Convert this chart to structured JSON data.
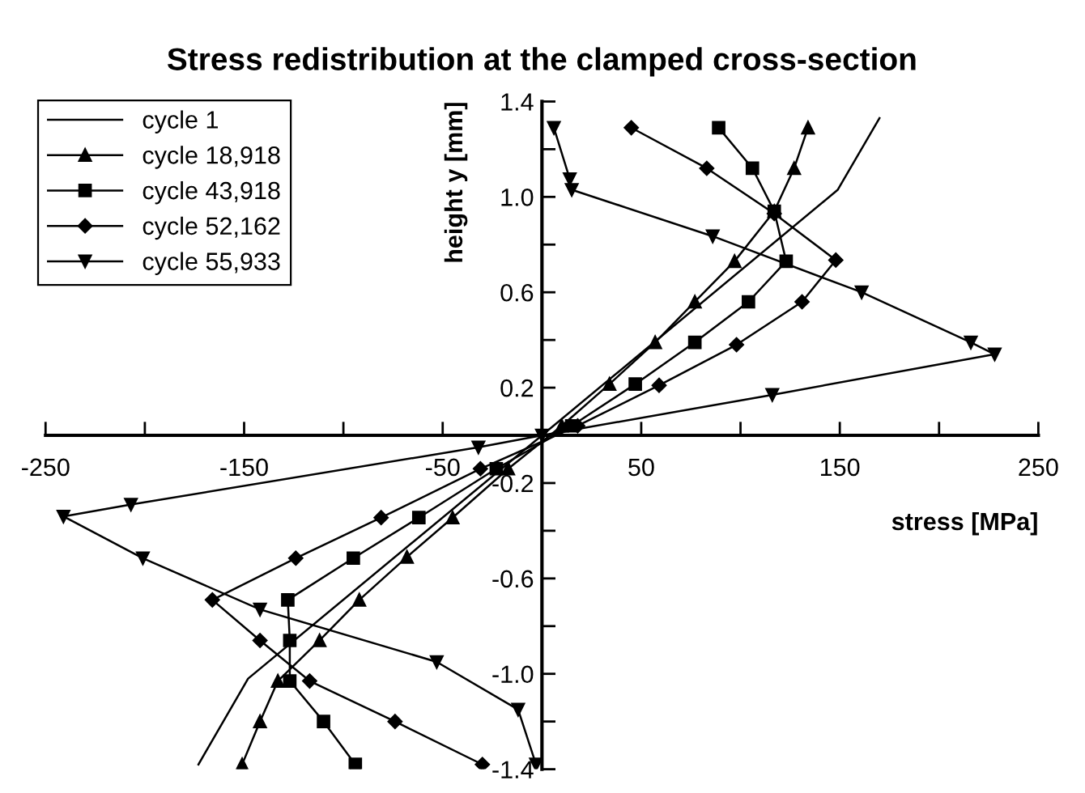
{
  "chart_data": {
    "type": "line",
    "title": "Stress redistribution at the clamped cross-section",
    "xlabel": "stress [MPa]",
    "ylabel": "height y [mm]",
    "xlim": [
      -250,
      250
    ],
    "ylim": [
      -1.4,
      1.4
    ],
    "xticks": [
      -250,
      {
        "value": -200,
        "label": null
      },
      -150,
      {
        "value": -100,
        "label": null
      },
      -50,
      {
        "value": 0,
        "label": null
      },
      50,
      {
        "value": 100,
        "label": null
      },
      150,
      {
        "value": 200,
        "label": null
      },
      250
    ],
    "yticks": [
      -1.4,
      {
        "value": -1.2,
        "label": null
      },
      {
        "value": -1.0,
        "label": "-1.0"
      },
      {
        "value": -0.8,
        "label": null
      },
      -0.6,
      {
        "value": -0.4,
        "label": null
      },
      -0.2,
      {
        "value": 0,
        "label": null
      },
      0.2,
      {
        "value": 0.4,
        "label": null
      },
      0.6,
      {
        "value": 0.8,
        "label": null
      },
      {
        "value": 1.0,
        "label": "1.0"
      },
      {
        "value": 1.2,
        "label": null
      },
      1.4
    ],
    "legend": "top left",
    "grid": false,
    "series": [
      {
        "name": "cycle 1",
        "color": "#000000",
        "marker": "none",
        "x": [
          -173,
          -148,
          0,
          149,
          170
        ],
        "values": [
          -1.38,
          -1.02,
          0,
          1.03,
          1.33
        ]
      },
      {
        "name": "cycle 18,918",
        "color": "#000000",
        "marker": "triangle",
        "x": [
          -151,
          -142,
          -133,
          -112,
          -92,
          -68,
          -45,
          -17,
          10,
          34,
          57,
          77,
          97,
          117,
          127,
          134
        ],
        "values": [
          -1.38,
          -1.2,
          -1.03,
          -0.86,
          -0.69,
          -0.51,
          -0.345,
          -0.14,
          0.04,
          0.215,
          0.39,
          0.56,
          0.73,
          0.94,
          1.12,
          1.29
        ]
      },
      {
        "name": "cycle 43,918",
        "color": "#000000",
        "marker": "square",
        "x": [
          -94,
          -110,
          -127,
          -127,
          -128,
          -95,
          -62,
          -23,
          15,
          47,
          77,
          104,
          123,
          117,
          106,
          89
        ],
        "values": [
          -1.38,
          -1.2,
          -1.03,
          -0.86,
          -0.69,
          -0.515,
          -0.345,
          -0.14,
          0.04,
          0.215,
          0.39,
          0.56,
          0.73,
          0.94,
          1.12,
          1.29
        ]
      },
      {
        "name": "cycle 52,162",
        "color": "#000000",
        "marker": "diamond",
        "x": [
          -30,
          -74,
          -117,
          -142,
          -166,
          -124,
          -81,
          -31,
          18,
          59,
          98,
          131,
          148,
          117,
          83,
          45
        ],
        "values": [
          -1.38,
          -1.2,
          -1.03,
          -0.86,
          -0.69,
          -0.515,
          -0.345,
          -0.14,
          0.04,
          0.21,
          0.38,
          0.56,
          0.735,
          0.93,
          1.12,
          1.29
        ]
      },
      {
        "name": "cycle 55,933",
        "color": "#000000",
        "marker": "triangle_down",
        "x": [
          -3,
          -12,
          -53,
          -142,
          -201,
          -241,
          -207,
          -32,
          0,
          116,
          228,
          216,
          161,
          86,
          15,
          14,
          6
        ],
        "values": [
          -1.38,
          -1.15,
          -0.95,
          -0.73,
          -0.515,
          -0.34,
          -0.29,
          -0.05,
          0,
          0.17,
          0.34,
          0.39,
          0.6,
          0.835,
          1.03,
          1.075,
          1.29
        ]
      }
    ]
  }
}
